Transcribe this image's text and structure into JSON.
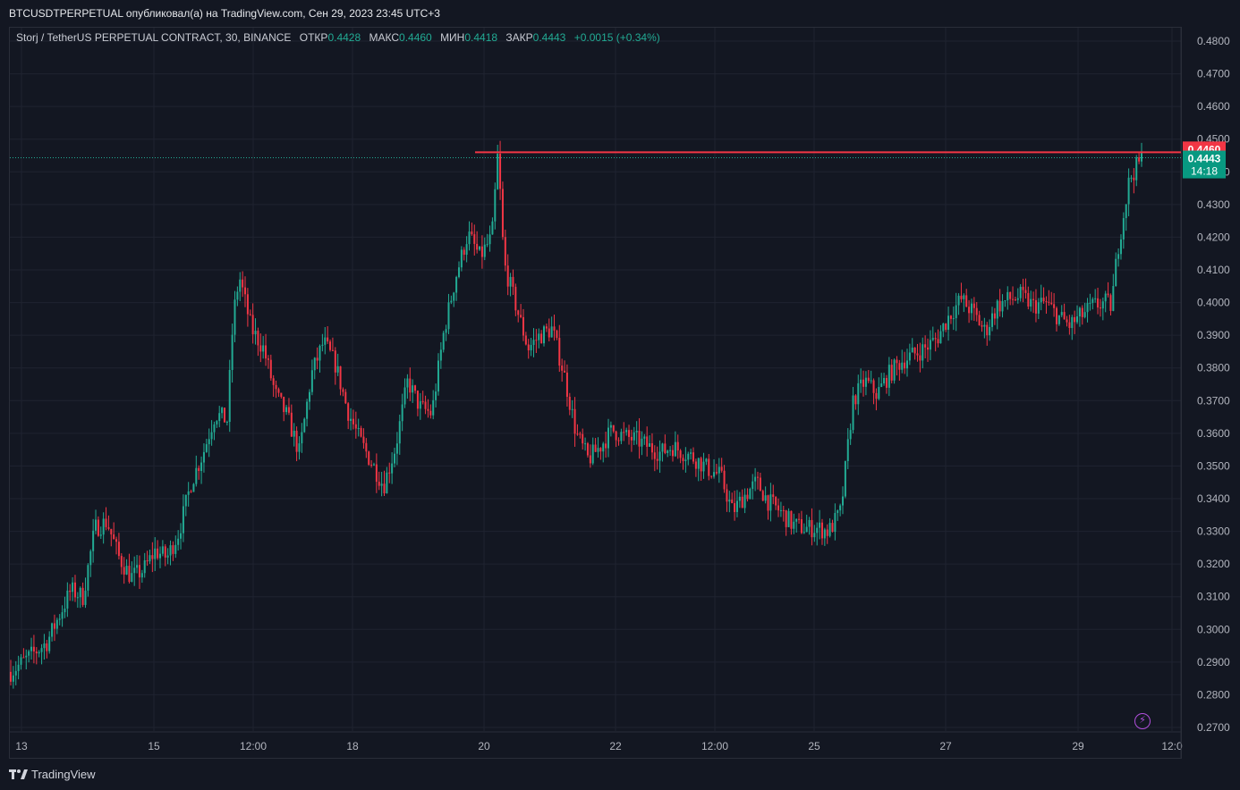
{
  "header": {
    "title": "BTCUSDTPERPETUAL опубликовал(а) на TradingView.com, Сен 29, 2023 23:45 UTC+3"
  },
  "legend": {
    "symbol": "Storj / TetherUS PERPETUAL CONTRACT, 30, BINANCE",
    "open_label": "ОТКР",
    "open": "0.4428",
    "high_label": "МАКС",
    "high": "0.4460",
    "low_label": "МИН",
    "low": "0.4418",
    "close_label": "ЗАКР",
    "close": "0.4443",
    "change": "+0.0015 (+0.34%)"
  },
  "footer": {
    "brand": "TradingView"
  },
  "colors": {
    "up": "#22ab94",
    "down": "#f23645",
    "background": "#131722",
    "grid": "#1f2330"
  },
  "chart_data": {
    "type": "candlestick",
    "y_ticks": [
      "0.4800",
      "0.4700",
      "0.4600",
      "0.4500",
      "0.4400",
      "0.4300",
      "0.4200",
      "0.4100",
      "0.4000",
      "0.3900",
      "0.3800",
      "0.3700",
      "0.3600",
      "0.3500",
      "0.3400",
      "0.3300",
      "0.3200",
      "0.3100",
      "0.3000",
      "0.2900",
      "0.2800",
      "0.2700"
    ],
    "ylim": [
      0.27,
      0.48
    ],
    "x_ticks": [
      "13",
      "15",
      "12:00",
      "18",
      "20",
      "22",
      "12:00",
      "25",
      "27",
      "29",
      "12:0"
    ],
    "resistance_level": 0.446,
    "resistance_label": "0.4460",
    "last_price": 0.4443,
    "last_price_label": "0.4443",
    "countdown": "14:18",
    "price_path": [
      [
        0,
        0.287
      ],
      [
        3,
        0.296
      ],
      [
        5,
        0.312
      ],
      [
        6,
        0.31
      ],
      [
        7,
        0.331
      ],
      [
        8,
        0.333
      ],
      [
        9,
        0.322
      ],
      [
        10,
        0.316
      ],
      [
        11,
        0.318
      ],
      [
        12,
        0.324
      ],
      [
        13,
        0.322
      ],
      [
        14,
        0.33
      ],
      [
        15,
        0.345
      ],
      [
        16,
        0.354
      ],
      [
        17,
        0.366
      ],
      [
        18,
        0.364
      ],
      [
        18.5,
        0.396
      ],
      [
        19,
        0.408
      ],
      [
        20,
        0.392
      ],
      [
        21,
        0.386
      ],
      [
        22,
        0.372
      ],
      [
        23,
        0.365
      ],
      [
        24,
        0.354
      ],
      [
        25,
        0.378
      ],
      [
        26,
        0.388
      ],
      [
        27,
        0.381
      ],
      [
        28,
        0.367
      ],
      [
        29,
        0.358
      ],
      [
        30,
        0.351
      ],
      [
        31,
        0.344
      ],
      [
        32,
        0.356
      ],
      [
        33,
        0.376
      ],
      [
        34,
        0.368
      ],
      [
        35,
        0.366
      ],
      [
        36,
        0.391
      ],
      [
        37,
        0.408
      ],
      [
        38,
        0.421
      ],
      [
        39,
        0.414
      ],
      [
        40,
        0.42
      ],
      [
        40.5,
        0.446
      ],
      [
        41,
        0.412
      ],
      [
        42,
        0.399
      ],
      [
        43,
        0.386
      ],
      [
        44,
        0.39
      ],
      [
        45,
        0.392
      ],
      [
        46,
        0.378
      ],
      [
        47,
        0.36
      ],
      [
        48,
        0.352
      ],
      [
        49,
        0.356
      ],
      [
        50,
        0.361
      ],
      [
        51,
        0.359
      ],
      [
        52,
        0.358
      ],
      [
        53,
        0.356
      ],
      [
        54,
        0.354
      ],
      [
        55,
        0.356
      ],
      [
        56,
        0.354
      ],
      [
        57,
        0.352
      ],
      [
        58,
        0.349
      ],
      [
        59,
        0.347
      ],
      [
        60,
        0.336
      ],
      [
        61,
        0.341
      ],
      [
        62,
        0.345
      ],
      [
        63,
        0.339
      ],
      [
        64,
        0.336
      ],
      [
        65,
        0.332
      ],
      [
        66,
        0.331
      ],
      [
        67,
        0.331
      ],
      [
        68,
        0.33
      ],
      [
        69,
        0.336
      ],
      [
        70,
        0.37
      ],
      [
        71,
        0.376
      ],
      [
        72,
        0.372
      ],
      [
        73,
        0.378
      ],
      [
        74,
        0.382
      ],
      [
        75,
        0.384
      ],
      [
        76,
        0.386
      ],
      [
        77,
        0.389
      ],
      [
        78,
        0.396
      ],
      [
        79,
        0.401
      ],
      [
        80,
        0.397
      ],
      [
        81,
        0.391
      ],
      [
        82,
        0.399
      ],
      [
        83,
        0.401
      ],
      [
        84,
        0.402
      ],
      [
        85,
        0.399
      ],
      [
        86,
        0.4
      ],
      [
        87,
        0.396
      ],
      [
        88,
        0.393
      ],
      [
        89,
        0.396
      ],
      [
        90,
        0.399
      ],
      [
        91,
        0.4
      ],
      [
        91.5,
        0.399
      ],
      [
        92,
        0.416
      ],
      [
        93,
        0.438
      ],
      [
        94,
        0.444
      ]
    ]
  }
}
